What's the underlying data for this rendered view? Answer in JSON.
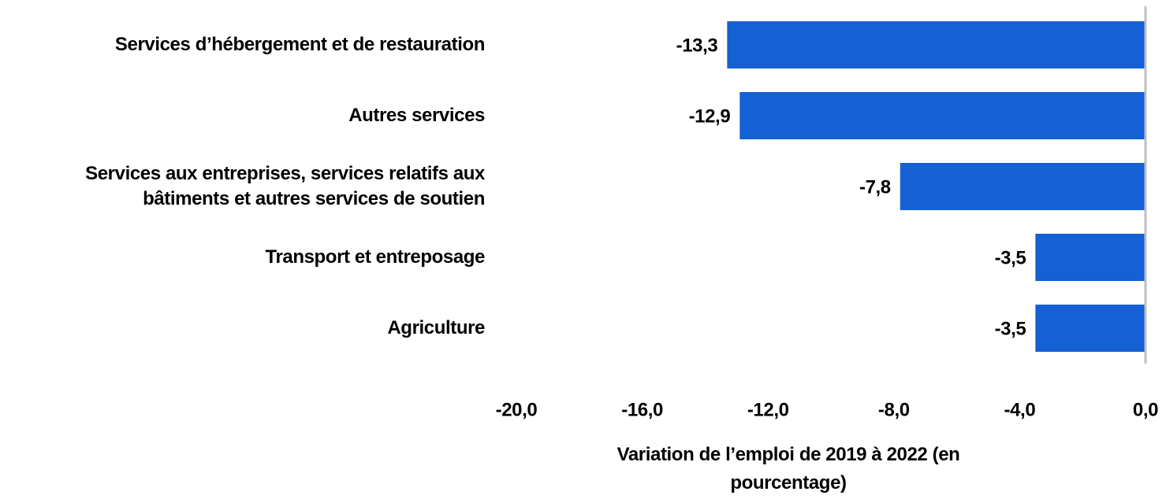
{
  "chart_data": {
    "type": "barh",
    "categories": [
      "Services d’hébergement et de restauration",
      "Autres services",
      "Services aux entreprises, services relatifs aux bâtiments et autres services de soutien",
      "Transport et entreposage",
      "Agriculture"
    ],
    "values": [
      -13.3,
      -12.9,
      -7.8,
      -3.5,
      -3.5
    ],
    "value_labels": [
      "-13,3",
      "-12,9",
      "-7,8",
      "-3,5",
      "-3,5"
    ],
    "color": "#1460d4",
    "xlim": [
      -20,
      0
    ],
    "xticks": [
      {
        "value": -20,
        "label": "-20,0"
      },
      {
        "value": -16,
        "label": "-16,0"
      },
      {
        "value": -12,
        "label": "-12,0"
      },
      {
        "value": -8,
        "label": "-8,0"
      },
      {
        "value": -4,
        "label": "-4,0"
      },
      {
        "value": 0,
        "label": "0,0"
      }
    ],
    "xlabel": "Variation de l’emploi de 2019 à 2022 (en pourcentage)"
  }
}
